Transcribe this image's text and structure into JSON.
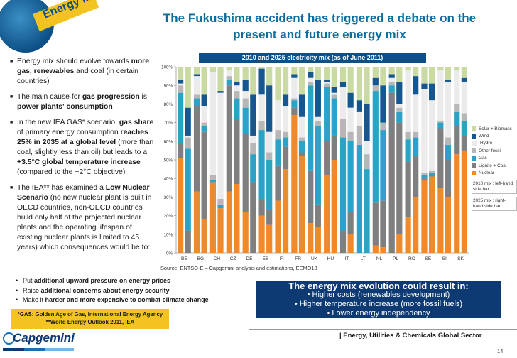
{
  "header": {
    "tag": "Energy Mix",
    "title": "The Fukushima accident has triggered a debate on the present and future energy mix"
  },
  "left_text": {
    "b1": {
      "a": "Energy mix should evolve towards ",
      "b": "more gas, renewables",
      "c": " and coal (in certain countries)"
    },
    "b2": {
      "a": "The main cause for ",
      "b": "gas progression",
      "c": " is ",
      "d": "power plants' consumption"
    },
    "b3": {
      "a": "In the new IEA GAS* scenario, ",
      "b": "gas share",
      "c": " of primary energy consumption ",
      "d": "reaches 25% in 2035 at a global level",
      "e": " (more than coal, slightly less than oil) but leads to a ",
      "f": "+3.5°C global temperature increase",
      "g": " (compared to the +2°C objective)"
    },
    "b4": {
      "a": "The IEA** has examined a ",
      "b": "Low Nuclear Scenario",
      "c": " (no new nuclear plant is built in OECD countries, non-OECD countries build only half of the projected nuclear plants and the operating lifespan of existing nuclear plants is limited to 45 years) which consequences would be to:"
    },
    "subs": [
      {
        "a": "Put ",
        "b": "additional upward pressure on energy prices",
        "c": ""
      },
      {
        "a": "Raise ",
        "b": "additional concerns about energy security",
        "c": ""
      },
      {
        "a": "Make it ",
        "b": "harder and more expensive to combat climate change",
        "c": ""
      }
    ],
    "footnote1": "*GAS: Golden Age of Gas, International Energy Agency",
    "footnote2": "**World Energy Outlook 2011, IEA"
  },
  "callout": {
    "title": "The energy mix evolution could result in:",
    "items": [
      "• Higher costs (renewables development)",
      "• Higher temperature increase (more fossil fuels)",
      "• Lower energy independency"
    ]
  },
  "footer": {
    "brand": "Capgemini",
    "sector": "| Energy, Utilities & Chemicals Global Sector",
    "page": "14"
  },
  "source": "Source: ENTSO-E – Capgemini analysis and estimations, EEMO13",
  "legend_notes": {
    "n1": "2010 mix : left-hand side bar",
    "n2": "2025 mix : right-hand side bar"
  },
  "colors": {
    "Solar + Biomass": "#c9dba3",
    "Wind": "#17578f",
    "Hydro": "#ebebeb",
    "Other fossil": "#b7b7b7",
    "Gas": "#2ca3c6",
    "Lignite + Coal": "#7f7f7f",
    "Nuclear": "#ef8a2c"
  },
  "chart_data": {
    "type": "bar",
    "stacked": true,
    "title": "2010 and 2025 electricity mix (as of June 2011)",
    "ylim": [
      0,
      100
    ],
    "y_ticks": [
      "0%",
      "10%",
      "20%",
      "30%",
      "40%",
      "50%",
      "60%",
      "70%",
      "80%",
      "90%",
      "100%"
    ],
    "categories": [
      "BE",
      "BG",
      "CH",
      "CZ",
      "DE",
      "ES",
      "FI",
      "FR",
      "UK",
      "HU",
      "IT",
      "LT",
      "NL",
      "PL",
      "RO",
      "SE",
      "SI",
      "SK"
    ],
    "layers": [
      "Nuclear",
      "Lignite + Coal",
      "Gas",
      "Other fossil",
      "Hydro",
      "Wind",
      "Solar + Biomass"
    ],
    "note": "Each country shows two stacked bars: 2010 mix (left) and 2025 mix (right); values are percent shares in layer order.",
    "bars": [
      {
        "c": "BE",
        "y": "2010",
        "v": [
          51,
          8,
          27,
          4,
          1,
          2,
          7
        ]
      },
      {
        "c": "BE",
        "y": "2025",
        "v": [
          0,
          12,
          44,
          6,
          1,
          15,
          22
        ]
      },
      {
        "c": "BG",
        "y": "2010",
        "v": [
          33,
          46,
          4,
          2,
          10,
          1,
          4
        ]
      },
      {
        "c": "BG",
        "y": "2025",
        "v": [
          18,
          47,
          3,
          2,
          9,
          6,
          15
        ]
      },
      {
        "c": "CH",
        "y": "2010",
        "v": [
          38,
          0,
          1,
          3,
          55,
          0,
          3
        ]
      },
      {
        "c": "CH",
        "y": "2025",
        "v": [
          24,
          0,
          2,
          3,
          57,
          1,
          13
        ]
      },
      {
        "c": "CZ",
        "y": "2010",
        "v": [
          33,
          57,
          3,
          2,
          3,
          0,
          2
        ]
      },
      {
        "c": "CZ",
        "y": "2025",
        "v": [
          37,
          35,
          11,
          4,
          3,
          2,
          8
        ]
      },
      {
        "c": "DE",
        "y": "2010",
        "v": [
          22,
          42,
          14,
          5,
          4,
          6,
          7
        ]
      },
      {
        "c": "DE",
        "y": "2025",
        "v": [
          0,
          38,
          15,
          6,
          4,
          22,
          15
        ]
      },
      {
        "c": "ES",
        "y": "2010",
        "v": [
          20,
          9,
          37,
          5,
          14,
          14,
          1
        ]
      },
      {
        "c": "ES",
        "y": "2025",
        "v": [
          15,
          8,
          27,
          4,
          11,
          25,
          10
        ]
      },
      {
        "c": "FI",
        "y": "2010",
        "v": [
          28,
          19,
          14,
          5,
          16,
          0,
          18
        ]
      },
      {
        "c": "FI",
        "y": "2025",
        "v": [
          45,
          12,
          5,
          3,
          14,
          6,
          15
        ]
      },
      {
        "c": "FR",
        "y": "2010",
        "v": [
          74,
          4,
          4,
          1,
          11,
          2,
          4
        ]
      },
      {
        "c": "FR",
        "y": "2025",
        "v": [
          52,
          2,
          6,
          2,
          11,
          12,
          15
        ]
      },
      {
        "c": "UK",
        "y": "2010",
        "v": [
          16,
          28,
          46,
          2,
          2,
          3,
          3
        ]
      },
      {
        "c": "UK",
        "y": "2025",
        "v": [
          14,
          12,
          42,
          3,
          2,
          20,
          7
        ]
      },
      {
        "c": "HU",
        "y": "2010",
        "v": [
          42,
          18,
          29,
          2,
          1,
          1,
          7
        ]
      },
      {
        "c": "HU",
        "y": "2025",
        "v": [
          50,
          13,
          20,
          2,
          1,
          3,
          11
        ]
      },
      {
        "c": "IT",
        "y": "2010",
        "v": [
          0,
          12,
          50,
          10,
          17,
          3,
          8
        ]
      },
      {
        "c": "IT",
        "y": "2025",
        "v": [
          10,
          12,
          38,
          5,
          13,
          8,
          14
        ]
      },
      {
        "c": "LT",
        "y": "2010",
        "v": [
          0,
          0,
          58,
          10,
          8,
          6,
          18
        ]
      },
      {
        "c": "LT",
        "y": "2025",
        "v": [
          0,
          0,
          45,
          8,
          7,
          20,
          20
        ]
      },
      {
        "c": "NL",
        "y": "2010",
        "v": [
          4,
          23,
          60,
          3,
          0,
          4,
          6
        ]
      },
      {
        "c": "NL",
        "y": "2025",
        "v": [
          3,
          25,
          38,
          4,
          0,
          20,
          10
        ]
      },
      {
        "c": "PL",
        "y": "2010",
        "v": [
          0,
          86,
          4,
          2,
          2,
          2,
          4
        ]
      },
      {
        "c": "PL",
        "y": "2025",
        "v": [
          10,
          60,
          6,
          2,
          2,
          12,
          8
        ]
      },
      {
        "c": "RO",
        "y": "2010",
        "v": [
          19,
          30,
          12,
          4,
          33,
          0,
          2
        ]
      },
      {
        "c": "RO",
        "y": "2025",
        "v": [
          30,
          22,
          10,
          3,
          20,
          10,
          5
        ]
      },
      {
        "c": "SE",
        "y": "2010",
        "v": [
          39,
          1,
          2,
          1,
          45,
          3,
          9
        ]
      },
      {
        "c": "SE",
        "y": "2025",
        "v": [
          41,
          1,
          1,
          1,
          38,
          9,
          9
        ]
      },
      {
        "c": "SI",
        "y": "2010",
        "v": [
          35,
          32,
          3,
          1,
          27,
          0,
          2
        ]
      },
      {
        "c": "SI",
        "y": "2025",
        "v": [
          30,
          20,
          8,
          4,
          30,
          1,
          7
        ]
      },
      {
        "c": "SK",
        "y": "2010",
        "v": [
          53,
          15,
          8,
          4,
          18,
          0,
          2
        ]
      },
      {
        "c": "SK",
        "y": "2025",
        "v": [
          55,
          8,
          8,
          4,
          17,
          2,
          6
        ]
      }
    ]
  }
}
